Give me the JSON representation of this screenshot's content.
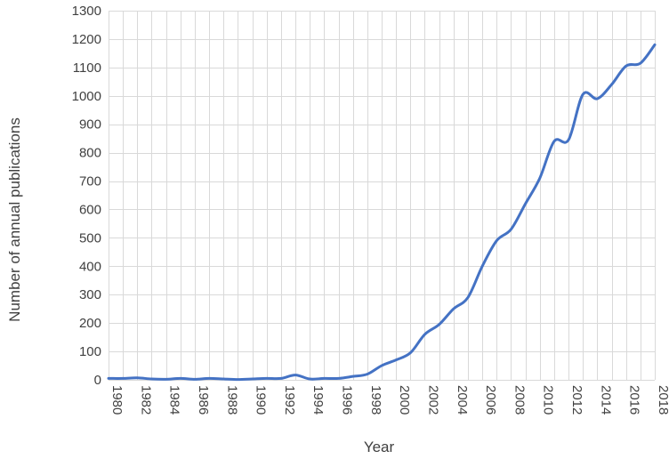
{
  "chart_data": {
    "type": "line",
    "title": "",
    "xlabel": "Year",
    "ylabel": "Number of annual publications",
    "xlim": [
      1980,
      2018
    ],
    "ylim": [
      0,
      1300
    ],
    "x_ticks": [
      "1980",
      "1982",
      "1984",
      "1986",
      "1988",
      "1990",
      "1992",
      "1994",
      "1996",
      "1998",
      "2000",
      "2002",
      "2004",
      "2006",
      "2008",
      "2010",
      "2012",
      "2014",
      "2016",
      "2018"
    ],
    "y_ticks": [
      "0",
      "100",
      "200",
      "300",
      "400",
      "500",
      "600",
      "700",
      "800",
      "900",
      "1000",
      "1100",
      "1200",
      "1300"
    ],
    "grid": true,
    "legend": "none",
    "line_color": "#4472c4",
    "x": [
      1980,
      1981,
      1982,
      1983,
      1984,
      1985,
      1986,
      1987,
      1988,
      1989,
      1990,
      1991,
      1992,
      1993,
      1994,
      1995,
      1996,
      1997,
      1998,
      1999,
      2000,
      2001,
      2002,
      2003,
      2004,
      2005,
      2006,
      2007,
      2008,
      2009,
      2010,
      2011,
      2012,
      2013,
      2014,
      2015,
      2016,
      2017,
      2018
    ],
    "series": [
      {
        "values": [
          5,
          5,
          7,
          3,
          2,
          5,
          2,
          5,
          3,
          1,
          3,
          5,
          5,
          17,
          3,
          5,
          5,
          12,
          20,
          50,
          70,
          95,
          160,
          195,
          250,
          290,
          400,
          490,
          530,
          620,
          710,
          840,
          845,
          1005,
          990,
          1040,
          1105,
          1115,
          1180
        ]
      }
    ]
  }
}
